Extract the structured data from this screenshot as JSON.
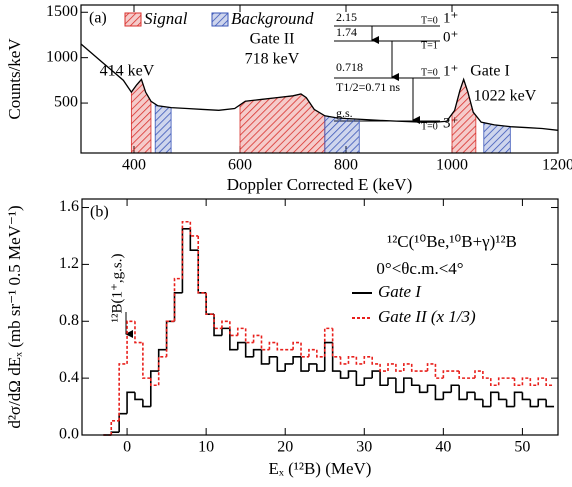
{
  "chart_data": [
    {
      "type": "line",
      "xlabel": "Doppler Corrected E  (keV)",
      "ylabel": "Counts/keV",
      "xlim": [
        300,
        1200
      ],
      "ylim": [
        -50,
        1580
      ],
      "xticks": [
        400,
        600,
        800,
        1000,
        1200
      ],
      "yticks": [
        500,
        1000,
        1500
      ],
      "x": [
        300,
        320,
        340,
        360,
        380,
        395,
        405,
        414,
        422,
        432,
        445,
        470,
        500,
        530,
        560,
        590,
        610,
        640,
        670,
        700,
        715,
        725,
        740,
        760,
        780,
        800,
        830,
        860,
        900,
        940,
        970,
        990,
        1005,
        1015,
        1022,
        1030,
        1040,
        1055,
        1080,
        1110,
        1140,
        1170,
        1200
      ],
      "values": [
        1150,
        1050,
        950,
        850,
        750,
        620,
        700,
        760,
        620,
        520,
        470,
        450,
        440,
        430,
        420,
        440,
        520,
        540,
        560,
        580,
        600,
        560,
        430,
        360,
        340,
        330,
        320,
        310,
        300,
        290,
        290,
        300,
        420,
        640,
        760,
        620,
        400,
        290,
        260,
        240,
        230,
        220,
        200
      ],
      "color": "#000000",
      "panel_label": "(a)",
      "bands": [
        {
          "name": "Signal",
          "color": "#d9302c",
          "ranges": [
            [
              395,
              432
            ],
            [
              600,
              760
            ],
            [
              1000,
              1045
            ]
          ]
        },
        {
          "name": "Background",
          "color": "#3a56b8",
          "ranges": [
            [
              440,
              470
            ],
            [
              760,
              825
            ],
            [
              1060,
              1110
            ]
          ]
        }
      ],
      "annotations": [
        "414 keV",
        "Gate II",
        "718 keV",
        "Gate I",
        "1022 keV",
        "2.15",
        "1.74",
        "T=0",
        "1⁺",
        "T=1",
        "0⁺",
        "0.718",
        "T1/2=0.71 ns",
        "T=0",
        "1⁺",
        "g.s.",
        "T=0",
        "3⁺"
      ]
    },
    {
      "type": "histogram",
      "xlabel": "Eₓ (¹²B) (MeV)",
      "ylabel": "d²σ/dΩ dEₓ (mb sr⁻¹ 0.5 MeV⁻¹)",
      "xlim": [
        -5.7,
        54.5
      ],
      "ylim": [
        0,
        1.66
      ],
      "xticks": [
        0,
        10,
        20,
        30,
        40,
        50
      ],
      "yticks": [
        {
          "value": 0,
          "label": "0.0"
        },
        0.4,
        0.8,
        1.2,
        1.6
      ],
      "bins": [
        -3,
        -2,
        -1,
        0,
        1,
        2,
        3,
        4,
        5,
        6,
        7,
        8,
        9,
        10,
        11,
        12,
        13,
        14,
        15,
        16,
        17,
        18,
        19,
        20,
        21,
        22,
        23,
        24,
        25,
        26,
        27,
        28,
        29,
        30,
        31,
        32,
        33,
        34,
        35,
        36,
        37,
        38,
        39,
        40,
        41,
        42,
        43,
        44,
        45,
        46,
        47,
        48,
        49,
        50,
        51,
        52,
        53,
        54
      ],
      "series": [
        {
          "name": "Gate I",
          "color": "#000000",
          "dashed": false,
          "values": [
            0.0,
            0.02,
            0.15,
            0.3,
            0.25,
            0.2,
            0.45,
            0.6,
            0.8,
            1.0,
            1.45,
            1.3,
            1.0,
            0.85,
            0.7,
            0.75,
            0.6,
            0.65,
            0.55,
            0.6,
            0.5,
            0.55,
            0.45,
            0.5,
            0.55,
            0.45,
            0.5,
            0.45,
            0.65,
            0.45,
            0.4,
            0.45,
            0.35,
            0.4,
            0.45,
            0.35,
            0.4,
            0.3,
            0.4,
            0.35,
            0.3,
            0.35,
            0.25,
            0.3,
            0.35,
            0.25,
            0.3,
            0.25,
            0.2,
            0.3,
            0.25,
            0.2,
            0.3,
            0.25,
            0.2,
            0.25,
            0.2
          ]
        },
        {
          "name": "Gate II (x 1/3)",
          "color": "#e8201c",
          "dashed": true,
          "values": [
            0.0,
            0.1,
            0.5,
            0.8,
            0.65,
            0.4,
            0.35,
            0.55,
            0.8,
            1.1,
            1.5,
            1.4,
            1.0,
            0.85,
            0.75,
            0.8,
            0.7,
            0.75,
            0.65,
            0.7,
            0.6,
            0.65,
            0.6,
            0.6,
            0.65,
            0.55,
            0.6,
            0.55,
            0.75,
            0.55,
            0.5,
            0.55,
            0.5,
            0.55,
            0.5,
            0.45,
            0.5,
            0.45,
            0.5,
            0.45,
            0.45,
            0.5,
            0.4,
            0.45,
            0.45,
            0.4,
            0.4,
            0.45,
            0.4,
            0.35,
            0.4,
            0.4,
            0.35,
            0.4,
            0.35,
            0.4,
            0.35
          ]
        }
      ],
      "panel_label": "(b)",
      "annotations": [
        "¹²C(¹⁰Be,¹⁰B+γ)¹²B",
        "0°<θc.m.<4°",
        "¹²B(1⁺,g.s.)"
      ]
    }
  ]
}
